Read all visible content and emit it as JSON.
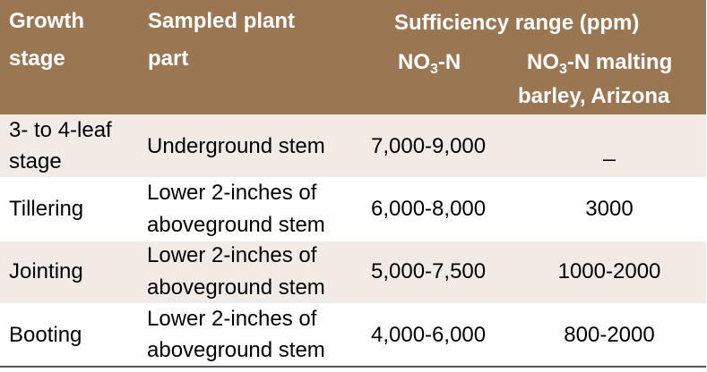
{
  "header": {
    "growth_stage": [
      "Growth",
      "stage"
    ],
    "sampled_plant_part": [
      "Sampled plant",
      "part"
    ],
    "sufficiency_range": "Sufficiency range (ppm)",
    "col_no3n": {
      "base": "NO",
      "sub": "3",
      "tail": "-N"
    },
    "col_no3n_malting": {
      "base": "NO",
      "sub": "3",
      "tail": "-N malting",
      "line2": "barley, Arizona"
    }
  },
  "rows": [
    {
      "stage": [
        "3- to 4-leaf",
        "stage"
      ],
      "part": [
        "Underground stem"
      ],
      "no3n": "7,000-9,000",
      "malting": "_"
    },
    {
      "stage": [
        "Tillering"
      ],
      "part": [
        "Lower 2-inches of",
        "aboveground stem"
      ],
      "no3n": "6,000-8,000",
      "malting": "3000"
    },
    {
      "stage": [
        "Jointing"
      ],
      "part": [
        "Lower 2-inches of",
        "aboveground stem"
      ],
      "no3n": "5,000-7,500",
      "malting": "1000-2000"
    },
    {
      "stage": [
        "Booting"
      ],
      "part": [
        "Lower 2-inches of",
        "aboveground stem"
      ],
      "no3n": "4,000-6,000",
      "malting": "800-2000"
    }
  ],
  "colors": {
    "header_bg": "#9b7653",
    "row_alt_bg": "#f2ebe5",
    "row_bg": "#ffffff"
  }
}
